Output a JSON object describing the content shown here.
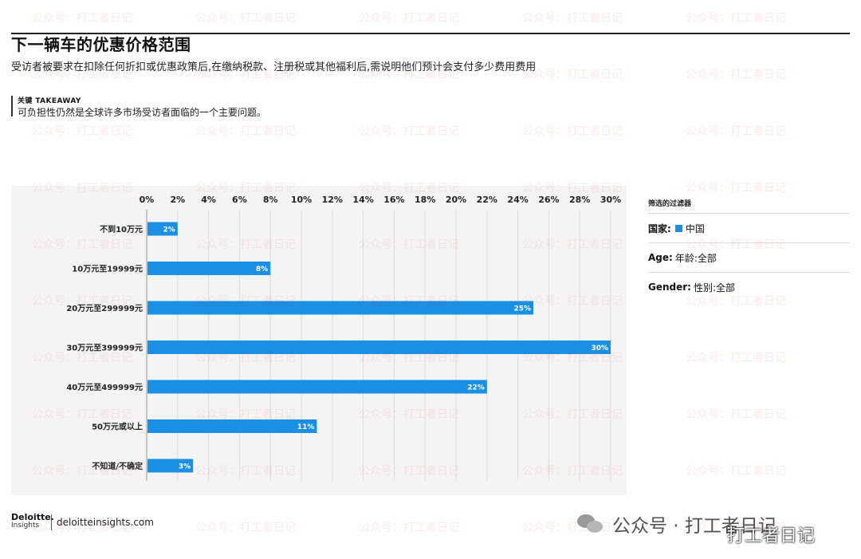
{
  "header": {
    "title": "下一辆车的优惠价格范围",
    "subtitle": "受访者被要求在扣除任何折扣或优惠政策后,在缴纳税款、注册税或其他福利后,需说明他们预计会支付多少费用费用",
    "takeaway_label": "关键 TAKEAWAY",
    "takeaway_text": "可负担性仍然是全球许多市场受访者面临的一个主要问题。"
  },
  "chart_data": {
    "type": "bar",
    "orientation": "horizontal",
    "categories": [
      "不到10万元",
      "10万元至19999元",
      "20万元至299999元",
      "30万元至399999元",
      "40万元至499999元",
      "50万元或以上",
      "不知道/不确定"
    ],
    "values": [
      2,
      8,
      25,
      30,
      22,
      11,
      3
    ],
    "value_labels": [
      "2%",
      "8%",
      "25%",
      "30%",
      "22%",
      "11%",
      "3%"
    ],
    "xticks": [
      "0%",
      "2%",
      "4%",
      "6%",
      "8%",
      "10%",
      "12%",
      "14%",
      "16%",
      "18%",
      "20%",
      "22%",
      "24%",
      "26%",
      "28%",
      "30%"
    ],
    "xlim": [
      0,
      30
    ],
    "grid": true,
    "bar_color": "#1a8fe3"
  },
  "filters": {
    "title": "筛选的过滤器",
    "country_label": "国家:",
    "country_value": "中国",
    "age_label": "Age:",
    "age_value": "年龄:全部",
    "gender_label": "Gender:",
    "gender_value": "性别:全部"
  },
  "footer": {
    "logo_line1": "Deloitte.",
    "logo_line2": "Insights",
    "url": "deloitteinsights.com",
    "wechat_text": "公众号 · 打工者日记",
    "overlay_text": "打工者日记"
  },
  "watermark": {
    "text": "公众号：打工者日记"
  }
}
